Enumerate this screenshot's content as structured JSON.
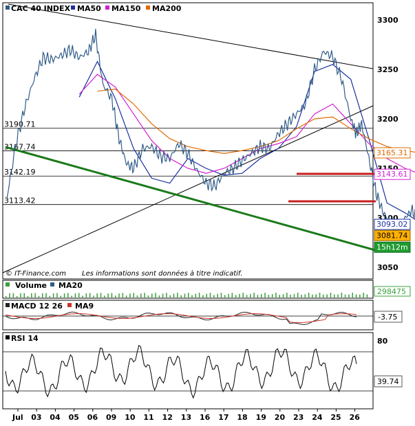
{
  "chart_data": {
    "type": "line",
    "title": "CAC 40 INDEX",
    "legend": [
      {
        "label": "CAC 40 INDEX",
        "color": "#2f5b88"
      },
      {
        "label": "MA50",
        "color": "#1a2fa0"
      },
      {
        "label": "MA150",
        "color": "#d11fd1"
      },
      {
        "label": "MA200",
        "color": "#e06a00"
      }
    ],
    "x_ticks": [
      "Jul",
      "03",
      "04",
      "05",
      "06",
      "09",
      "10",
      "11",
      "12",
      "13",
      "16",
      "17",
      "18",
      "19",
      "20",
      "23",
      "24",
      "25",
      "26"
    ],
    "y_ticks": [
      3050,
      3100,
      3150,
      3200,
      3250,
      3300
    ],
    "ylim": [
      3035,
      3310
    ],
    "grid": true,
    "price": [
      3120,
      3175,
      3212,
      3240,
      3262,
      3260,
      3264,
      3270,
      3262,
      3268,
      3285,
      3235,
      3220,
      3180,
      3155,
      3150,
      3170,
      3172,
      3162,
      3160,
      3175,
      3165,
      3148,
      3135,
      3132,
      3145,
      3150,
      3158,
      3165,
      3172,
      3170,
      3185,
      3195,
      3205,
      3215,
      3250,
      3268,
      3263,
      3240,
      3200,
      3185,
      3195,
      3160,
      3125,
      3105,
      3095,
      3082,
      3100,
      3108,
      3093,
      3082
    ],
    "price_x": [
      0,
      0.5,
      1,
      1.5,
      2,
      2.5,
      3,
      3.5,
      4,
      4.5,
      4.9,
      5.3,
      5.8,
      6.2,
      6.6,
      7,
      7.5,
      8,
      8.5,
      9,
      9.5,
      10,
      10.5,
      11,
      11.5,
      12,
      12.5,
      13,
      13.5,
      14,
      14.5,
      15,
      15.5,
      16,
      16.5,
      17,
      17.5,
      18,
      18.5,
      19,
      19.3,
      19.6,
      20,
      20.4,
      20.8,
      21.2,
      21.6,
      22,
      22.4,
      22.8,
      23
    ],
    "series": [
      {
        "name": "MA50",
        "color": "#1a2fa0",
        "x": [
          4,
          5,
          6,
          7,
          8,
          9,
          10,
          11,
          12,
          13,
          14,
          15,
          16,
          17,
          18,
          19,
          20,
          21,
          22,
          23
        ],
        "values": [
          3222,
          3258,
          3220,
          3170,
          3140,
          3135,
          3160,
          3150,
          3143,
          3145,
          3160,
          3170,
          3192,
          3248,
          3255,
          3240,
          3180,
          3115,
          3105,
          3093
        ]
      },
      {
        "name": "MA150",
        "color": "#d11fd1",
        "x": [
          4,
          5,
          6,
          7,
          8,
          9,
          10,
          11,
          12,
          13,
          14,
          15,
          16,
          17,
          18,
          19,
          20,
          21,
          22,
          23
        ],
        "values": [
          3225,
          3245,
          3232,
          3205,
          3178,
          3160,
          3150,
          3145,
          3150,
          3160,
          3170,
          3175,
          3182,
          3205,
          3215,
          3195,
          3175,
          3160,
          3150,
          3143
        ]
      },
      {
        "name": "MA200",
        "color": "#e06a00",
        "x": [
          5,
          6,
          7,
          8,
          9,
          10,
          11,
          12,
          13,
          14,
          15,
          16,
          17,
          18,
          19,
          20,
          21,
          22,
          23
        ],
        "values": [
          3228,
          3230,
          3215,
          3195,
          3180,
          3172,
          3168,
          3165,
          3168,
          3172,
          3178,
          3190,
          3200,
          3202,
          3190,
          3180,
          3172,
          3168,
          3165
        ]
      }
    ],
    "horizontal_levels": [
      {
        "label": "3190.71",
        "value": 3190.71
      },
      {
        "label": "3167.74",
        "value": 3167.74
      },
      {
        "label": "3142.19",
        "value": 3142.19
      },
      {
        "label": "3113.42",
        "value": 3113.42
      }
    ],
    "price_tags": [
      {
        "text": "3165.31",
        "value": 3165.31,
        "bg": "#ffffff",
        "border": "#e06a00",
        "fg": "#e06a00"
      },
      {
        "text": "3143.61",
        "value": 3143.61,
        "bg": "#ffffff",
        "border": "#d11fd1",
        "fg": "#d11fd1"
      },
      {
        "text": "3093.02",
        "value": 3093.02,
        "bg": "#ffffff",
        "border": "#1a2fa0",
        "fg": "#1a2fa0"
      },
      {
        "text": "3081.74",
        "value": 3081.74,
        "bg": "#ffb000",
        "border": "#9a6a00",
        "fg": "#000000"
      },
      {
        "text": "15h12m",
        "value": null,
        "bg": "#1f9b2f",
        "border": "#0f6b1f",
        "fg": "#ffffff"
      }
    ],
    "copyright": "© IT-Finance.com",
    "disclaimer": "Les informations sont données à titre indicatif.",
    "volume": {
      "labels": [
        "Volume",
        "MA20"
      ],
      "colors": [
        "#3aa13a",
        "#2f5b88"
      ],
      "last": "298475"
    },
    "macd": {
      "labels": [
        "MACD 12 26",
        "MA9"
      ],
      "colors": [
        "#222222",
        "#d0302b"
      ],
      "last": "-3.75"
    },
    "rsi": {
      "label": "RSI 14",
      "levels": [
        80
      ],
      "last": "39.74"
    }
  }
}
